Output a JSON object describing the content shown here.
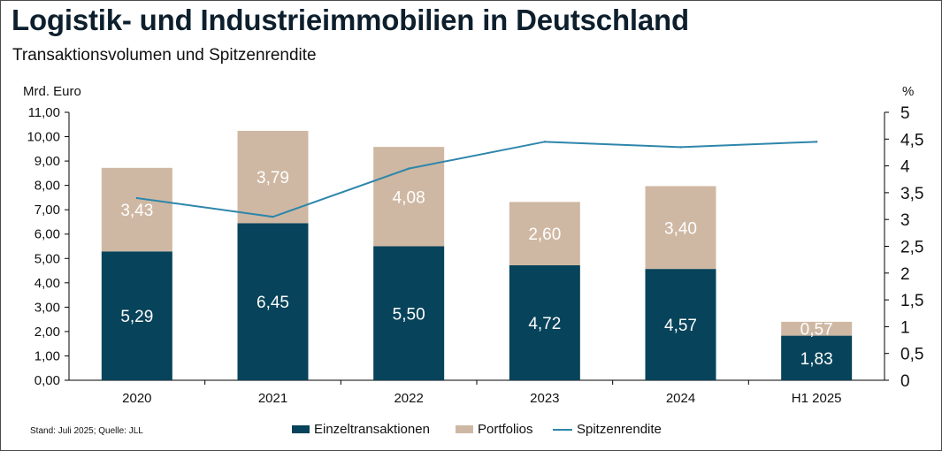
{
  "title": "Logistik- und Industrieimmobilien in Deutschland",
  "subtitle": "Transaktionsvolumen und Spitzenrendite",
  "source": "Stand: Juli 2025; Quelle: JLL",
  "colors": {
    "einzel": "#07435a",
    "portfolio": "#cfb8a3",
    "line": "#2e86ab",
    "axis": "#000000"
  },
  "chart_data": {
    "type": "bar",
    "stacked": true,
    "categories": [
      "2020",
      "2021",
      "2022",
      "2023",
      "2024",
      "H1 2025"
    ],
    "series": [
      {
        "name": "Einzeltransaktionen",
        "type": "bar",
        "axis": "left",
        "values": [
          5.29,
          6.45,
          5.5,
          4.72,
          4.57,
          1.83
        ],
        "labels": [
          "5,29",
          "6,45",
          "5,50",
          "4,72",
          "4,57",
          "1,83"
        ]
      },
      {
        "name": "Portfolios",
        "type": "bar",
        "axis": "left",
        "values": [
          3.43,
          3.79,
          4.08,
          2.6,
          3.4,
          0.57
        ],
        "labels": [
          "3,43",
          "3,79",
          "4,08",
          "2,60",
          "3,40",
          "0,57"
        ]
      },
      {
        "name": "Spitzenrendite",
        "type": "line",
        "axis": "right",
        "values": [
          3.4,
          3.05,
          3.95,
          4.45,
          4.35,
          4.45
        ]
      }
    ],
    "left_axis": {
      "label": "Mrd. Euro",
      "min": 0,
      "max": 11,
      "step": 1,
      "ticks": [
        "0,00",
        "1,00",
        "2,00",
        "3,00",
        "4,00",
        "5,00",
        "6,00",
        "7,00",
        "8,00",
        "9,00",
        "10,00",
        "11,00"
      ]
    },
    "right_axis": {
      "label": "%",
      "min": 0,
      "max": 5,
      "step": 0.5,
      "ticks": [
        "0",
        "0,5",
        "1",
        "1,5",
        "2",
        "2,5",
        "3",
        "3,5",
        "4",
        "4,5",
        "5"
      ]
    },
    "legend_position": "bottom-center"
  }
}
